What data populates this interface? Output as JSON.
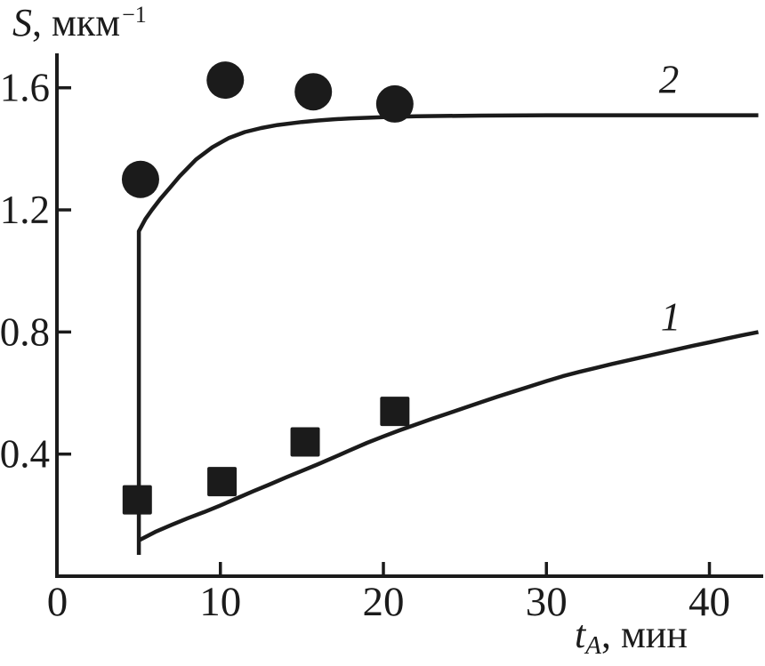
{
  "figure": {
    "y_axis_title": {
      "symbol": "S",
      "rest": ", мкм",
      "superscript": "−1"
    },
    "x_axis_title": {
      "symbol": "t",
      "subscript": "A",
      "rest": ", мин"
    }
  },
  "colors": {
    "ink": "#1b1b1b",
    "background": "#ffffff"
  },
  "chart_data": {
    "type": "line",
    "title": "",
    "xlabel": "tA, мин",
    "ylabel": "S, мкм−1",
    "xlim": [
      0,
      43.3
    ],
    "ylim": [
      0,
      1.707
    ],
    "grid": false,
    "legend_position": "inline-curve-labels",
    "xticks": [
      {
        "value": 0,
        "label": "0"
      },
      {
        "value": 10,
        "label": "10"
      },
      {
        "value": 20,
        "label": "20"
      },
      {
        "value": 30,
        "label": "30"
      },
      {
        "value": 40,
        "label": "40"
      }
    ],
    "yticks": [
      {
        "value": 0.4,
        "label": "0.4"
      },
      {
        "value": 0.8,
        "label": "0.8"
      },
      {
        "value": 1.2,
        "label": "1.2"
      },
      {
        "value": 1.6,
        "label": "1.6"
      }
    ],
    "series": [
      {
        "name": "series-1",
        "label": "1",
        "marker": "square",
        "scatter_points": [
          [
            4.9,
            0.25
          ],
          [
            10.1,
            0.31
          ],
          [
            15.2,
            0.44
          ],
          [
            20.7,
            0.54
          ]
        ],
        "curve_points": [
          [
            5,
            0.117
          ],
          [
            6,
            0.145
          ],
          [
            7,
            0.168
          ],
          [
            8,
            0.19
          ],
          [
            9,
            0.21
          ],
          [
            10,
            0.232
          ],
          [
            11,
            0.255
          ],
          [
            12,
            0.278
          ],
          [
            13,
            0.3
          ],
          [
            14,
            0.323
          ],
          [
            15,
            0.345
          ],
          [
            16,
            0.367
          ],
          [
            17,
            0.39
          ],
          [
            18,
            0.414
          ],
          [
            19,
            0.437
          ],
          [
            20,
            0.458
          ],
          [
            21,
            0.478
          ],
          [
            22,
            0.497
          ],
          [
            23,
            0.516
          ],
          [
            24,
            0.534
          ],
          [
            25,
            0.552
          ],
          [
            26,
            0.57
          ],
          [
            27,
            0.588
          ],
          [
            28,
            0.605
          ],
          [
            29,
            0.622
          ],
          [
            30,
            0.639
          ],
          [
            31,
            0.655
          ],
          [
            32,
            0.669
          ],
          [
            33,
            0.682
          ],
          [
            34,
            0.695
          ],
          [
            35,
            0.707
          ],
          [
            36,
            0.719
          ],
          [
            37,
            0.731
          ],
          [
            38,
            0.743
          ],
          [
            39,
            0.755
          ],
          [
            40,
            0.766
          ],
          [
            41,
            0.778
          ],
          [
            42,
            0.789
          ],
          [
            43,
            0.8
          ]
        ]
      },
      {
        "name": "series-2",
        "label": "2",
        "marker": "circle",
        "scatter_points": [
          [
            5.1,
            1.3
          ],
          [
            10.3,
            1.625
          ],
          [
            15.7,
            1.587
          ],
          [
            20.7,
            1.547
          ]
        ],
        "curve_points": [
          [
            5,
            0.07
          ],
          [
            5,
            1.13
          ],
          [
            5.4,
            1.17
          ],
          [
            5.8,
            1.2
          ],
          [
            6.3,
            1.235
          ],
          [
            6.9,
            1.272
          ],
          [
            7.5,
            1.31
          ],
          [
            8.5,
            1.365
          ],
          [
            9.5,
            1.405
          ],
          [
            10.5,
            1.435
          ],
          [
            11.5,
            1.455
          ],
          [
            12.5,
            1.468
          ],
          [
            13.5,
            1.478
          ],
          [
            15,
            1.488
          ],
          [
            16,
            1.493
          ],
          [
            17,
            1.497
          ],
          [
            18,
            1.5
          ],
          [
            20,
            1.504
          ],
          [
            22,
            1.507
          ],
          [
            26,
            1.509
          ],
          [
            30,
            1.51
          ],
          [
            43,
            1.51
          ]
        ]
      }
    ]
  }
}
